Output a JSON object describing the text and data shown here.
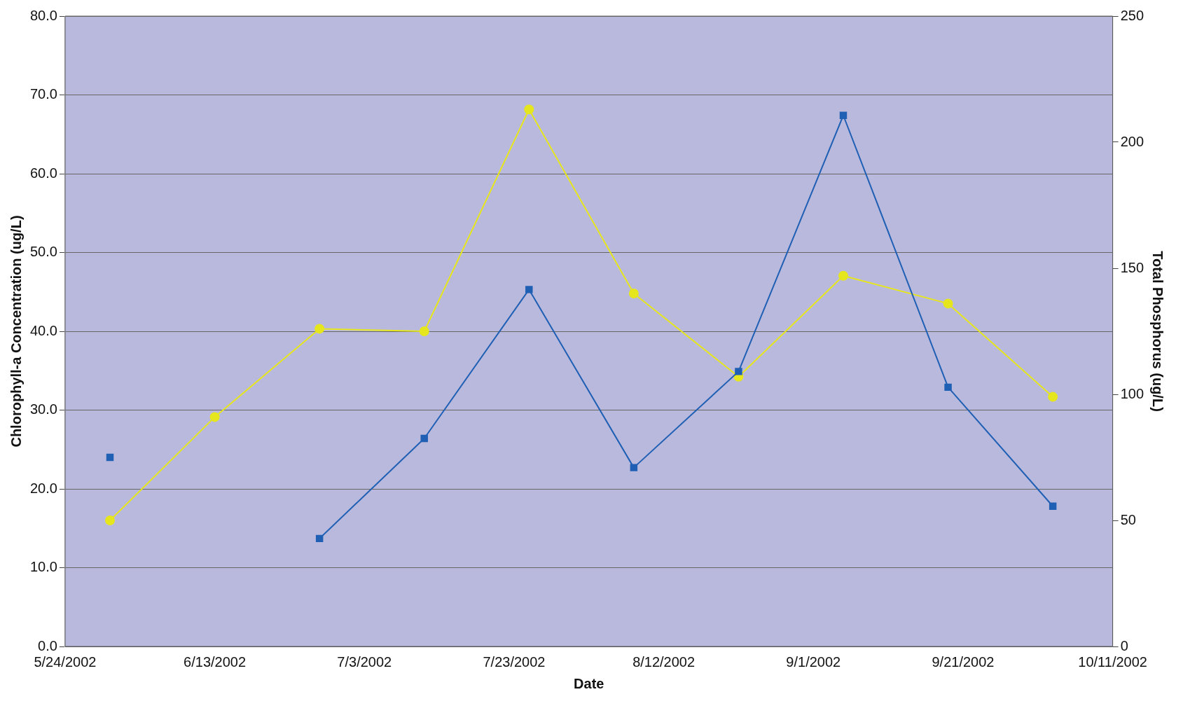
{
  "chart_data": {
    "type": "line",
    "xlabel": "Date",
    "ylabel": "Chlorophyll-a Concentration (ug/L)",
    "y2label": "Total Phosphorus (ug/L)",
    "x": [
      "2002-05-30",
      "2002-06-13",
      "2002-06-27",
      "2002-07-11",
      "2002-07-25",
      "2002-08-08",
      "2002-08-22",
      "2002-09-05",
      "2002-09-19",
      "2002-10-03"
    ],
    "series": [
      {
        "color": "#1f5fb4",
        "marker": "square",
        "values": [
          24.0,
          null,
          13.7,
          26.4,
          45.3,
          22.7,
          34.9,
          67.4,
          32.9,
          17.8
        ]
      },
      {
        "color": "#e6e61e",
        "marker": "circle",
        "axis": "y2",
        "values": [
          50,
          91,
          126,
          125,
          213,
          140,
          107,
          147,
          136,
          99
        ]
      }
    ],
    "xlim": [
      "2002-05-24",
      "2002-10-11"
    ],
    "xticks": [
      {
        "value": "2002-05-24",
        "label": "5/24/2002"
      },
      {
        "value": "2002-06-13",
        "label": "6/13/2002"
      },
      {
        "value": "2002-07-03",
        "label": "7/3/2002"
      },
      {
        "value": "2002-07-23",
        "label": "7/23/2002"
      },
      {
        "value": "2002-08-12",
        "label": "8/12/2002"
      },
      {
        "value": "2002-09-01",
        "label": "9/1/2002"
      },
      {
        "value": "2002-09-21",
        "label": "9/21/2002"
      },
      {
        "value": "2002-10-11",
        "label": "10/11/2002"
      }
    ],
    "ylim": [
      0,
      80
    ],
    "yticks": [
      {
        "value": 0,
        "label": "0.0"
      },
      {
        "value": 10,
        "label": "10.0"
      },
      {
        "value": 20,
        "label": "20.0"
      },
      {
        "value": 30,
        "label": "30.0"
      },
      {
        "value": 40,
        "label": "40.0"
      },
      {
        "value": 50,
        "label": "50.0"
      },
      {
        "value": 60,
        "label": "60.0"
      },
      {
        "value": 70,
        "label": "70.0"
      },
      {
        "value": 80,
        "label": "80.0"
      }
    ],
    "y2lim": [
      0,
      250
    ],
    "y2ticks": [
      0,
      50,
      100,
      150,
      200,
      250
    ],
    "grid": "y",
    "legend": false
  }
}
